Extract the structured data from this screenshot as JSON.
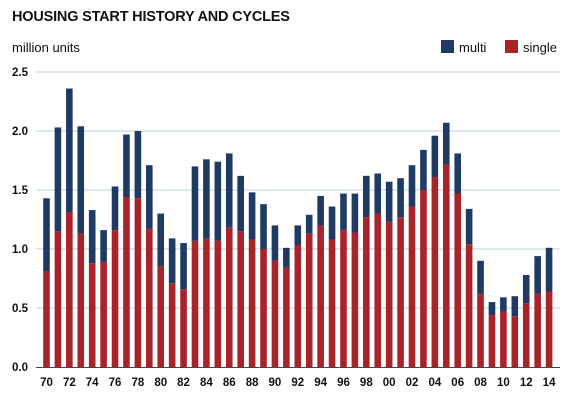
{
  "chart_data": {
    "type": "bar",
    "stacked": true,
    "title": "HOUSING START HISTORY AND CYCLES",
    "ylabel": "million units",
    "ylim": [
      0,
      2.5
    ],
    "y_ticks": [
      "0.0",
      "0.5",
      "1.0",
      "1.5",
      "2.0",
      "2.5"
    ],
    "x_tick_labels": [
      "70",
      "72",
      "74",
      "76",
      "78",
      "80",
      "82",
      "84",
      "86",
      "88",
      "90",
      "92",
      "94",
      "96",
      "98",
      "00",
      "02",
      "04",
      "06",
      "08",
      "10",
      "12",
      "14"
    ],
    "categories": [
      "1970",
      "1971",
      "1972",
      "1973",
      "1974",
      "1975",
      "1976",
      "1977",
      "1978",
      "1979",
      "1980",
      "1981",
      "1982",
      "1983",
      "1984",
      "1985",
      "1986",
      "1987",
      "1988",
      "1989",
      "1990",
      "1991",
      "1992",
      "1993",
      "1994",
      "1995",
      "1996",
      "1997",
      "1998",
      "1999",
      "2000",
      "2001",
      "2002",
      "2003",
      "2004",
      "2005",
      "2006",
      "2007",
      "2008",
      "2009",
      "2010",
      "2011",
      "2012",
      "2013",
      "2014"
    ],
    "series": [
      {
        "name": "single",
        "color": "#a8232a",
        "values": [
          0.81,
          1.15,
          1.31,
          1.13,
          0.88,
          0.89,
          1.16,
          1.44,
          1.43,
          1.17,
          0.85,
          0.71,
          0.66,
          1.07,
          1.09,
          1.07,
          1.18,
          1.15,
          1.08,
          1.0,
          0.9,
          0.84,
          1.03,
          1.13,
          1.2,
          1.08,
          1.16,
          1.14,
          1.27,
          1.3,
          1.23,
          1.27,
          1.36,
          1.5,
          1.61,
          1.72,
          1.47,
          1.04,
          0.62,
          0.44,
          0.47,
          0.43,
          0.54,
          0.62,
          0.64
        ]
      },
      {
        "name": "multi",
        "color": "#1f3a63",
        "values": [
          0.62,
          0.88,
          1.05,
          0.91,
          0.45,
          0.27,
          0.37,
          0.53,
          0.57,
          0.54,
          0.45,
          0.38,
          0.39,
          0.63,
          0.67,
          0.67,
          0.63,
          0.47,
          0.4,
          0.38,
          0.3,
          0.17,
          0.17,
          0.16,
          0.25,
          0.28,
          0.31,
          0.33,
          0.35,
          0.34,
          0.34,
          0.33,
          0.35,
          0.34,
          0.35,
          0.35,
          0.34,
          0.3,
          0.28,
          0.11,
          0.12,
          0.17,
          0.24,
          0.32,
          0.37
        ]
      }
    ],
    "legend": {
      "position": "top-right",
      "order": [
        "multi",
        "single"
      ]
    },
    "grid": true
  }
}
